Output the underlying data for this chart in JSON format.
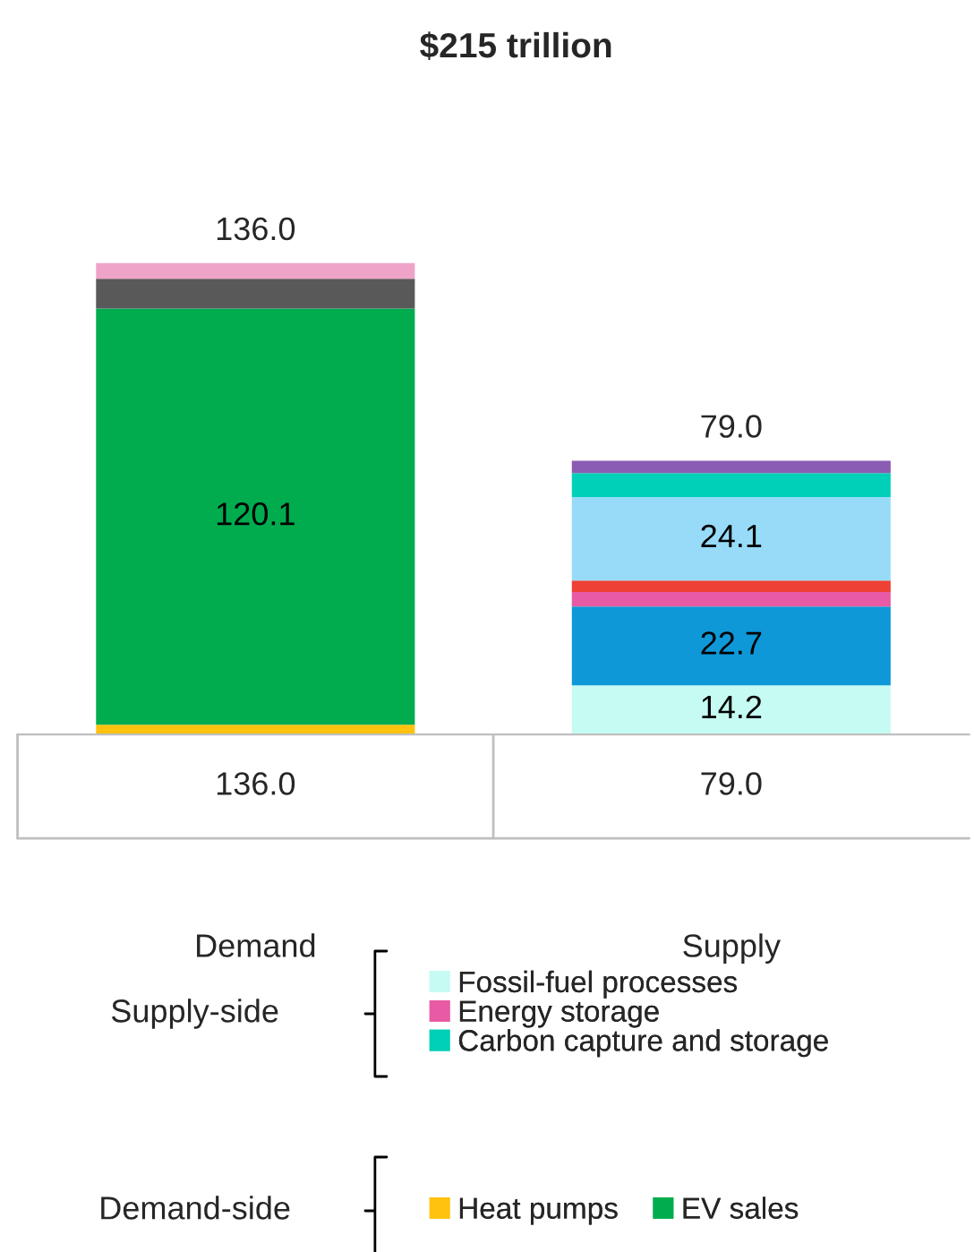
{
  "chart_data": {
    "type": "bar",
    "title": "$215 trillion",
    "stacked": true,
    "categories": [
      "Demand",
      "Supply"
    ],
    "series": [
      {
        "name": "Heat pumps",
        "color": "#ffc20e",
        "values": [
          2.8,
          null
        ]
      },
      {
        "name": "EV sales",
        "color": "#00ac4e",
        "values": [
          120.1,
          null
        ],
        "value_labels": [
          "120.1",
          null
        ]
      },
      {
        "color": "#595959",
        "values": [
          8.6,
          null
        ]
      },
      {
        "color": "#f0a3c8",
        "values": [
          4.5,
          null
        ]
      },
      {
        "name": "Fossil-fuel processes",
        "color": "#c5fbf2",
        "values": [
          null,
          14.2
        ],
        "value_labels": [
          null,
          "14.2"
        ]
      },
      {
        "color": "#0e98d8",
        "values": [
          null,
          22.7
        ],
        "value_labels": [
          null,
          "22.7"
        ]
      },
      {
        "name": "Energy storage",
        "color": "#e85aa3",
        "values": [
          null,
          4.2
        ]
      },
      {
        "color": "#ee4035",
        "values": [
          null,
          3.3
        ]
      },
      {
        "color": "#97dbf8",
        "values": [
          null,
          24.1
        ],
        "value_labels": [
          null,
          "24.1"
        ]
      },
      {
        "name": "Carbon capture and storage",
        "color": "#00d0b7",
        "values": [
          null,
          6.9
        ]
      },
      {
        "color": "#8a5cb4",
        "values": [
          null,
          3.6
        ]
      }
    ],
    "totals": [
      "136.0",
      "79.0"
    ],
    "annotations": [
      "Supply-side",
      "Demand-side"
    ],
    "legend": "bottom",
    "grid": false
  }
}
